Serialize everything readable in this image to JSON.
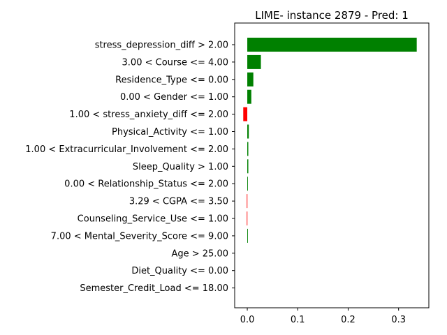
{
  "chart_data": {
    "type": "bar",
    "orientation": "horizontal",
    "title": "LIME- instance 2879 - Pred: 1",
    "xlabel": "",
    "ylabel": "",
    "xlim": [
      -0.025,
      0.36
    ],
    "xticks": [
      "0.0",
      "0.1",
      "0.2",
      "0.3"
    ],
    "xtick_values": [
      0.0,
      0.1,
      0.2,
      0.3
    ],
    "grid": false,
    "legend": "none",
    "positive_color": "#008000",
    "negative_color": "#ff0000",
    "categories": [
      "stress_depression_diff > 2.00",
      "3.00 < Course <= 4.00",
      "Residence_Type <= 0.00",
      "0.00 < Gender <= 1.00",
      "1.00 < stress_anxiety_diff <= 2.00",
      "Physical_Activity <= 1.00",
      "1.00 < Extracurricular_Involvement <= 2.00",
      "Sleep_Quality > 1.00",
      "0.00 < Relationship_Status <= 2.00",
      "3.29 < CGPA <= 3.50",
      "Counseling_Service_Use <= 1.00",
      "7.00 < Mental_Severity_Score <= 9.00",
      "Age > 25.00",
      "Diet_Quality <= 0.00",
      "Semester_Credit_Load <= 18.00"
    ],
    "values": [
      0.336,
      0.027,
      0.012,
      0.008,
      -0.008,
      0.003,
      0.002,
      0.002,
      0.001,
      -0.001,
      -0.001,
      0.001,
      0.0,
      0.0,
      0.0
    ]
  }
}
